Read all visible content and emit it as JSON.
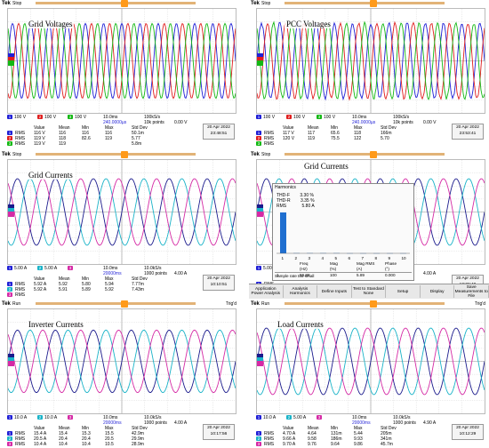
{
  "colors": {
    "ch1": "#1f1fd6",
    "ch2": "#e01e1e",
    "ch3": "#13b813",
    "ch4": "#e020c0",
    "cyan": "#19b3c8",
    "navy": "#1a1a8c",
    "magenta": "#d52aa5",
    "orange": "#ff9a1a"
  },
  "scopes": [
    {
      "title": "Grid Voltages",
      "brand": "Tek",
      "mode": "Stop",
      "trig": "",
      "ch_row": [
        "100 V",
        "100 V",
        "100 V"
      ],
      "timebase": "10.0ms",
      "sample": "100kS/s",
      "points": "10k points",
      "trig_level": "0.00 V",
      "delay": "240.0000µs",
      "head": [
        "Value",
        "Mean",
        "Min",
        "Max",
        "Std Dev"
      ],
      "meas": [
        [
          "RMS",
          "116 V",
          "116",
          "116",
          "116",
          "50.1m"
        ],
        [
          "RMS",
          "119 V",
          "118",
          "82.6",
          "119",
          "5.77"
        ],
        [
          "RMS",
          "119 V",
          "119",
          "",
          "",
          "5.8m"
        ]
      ],
      "date": "20 Apr 2022",
      "time": "23:48:51"
    },
    {
      "title": "PCC Voltages",
      "brand": "Tek",
      "mode": "Stop",
      "trig": "",
      "ch_row": [
        "100 V",
        "100 V",
        "100 V"
      ],
      "timebase": "10.0ms",
      "sample": "100kS/s",
      "points": "10k points",
      "trig_level": "0.00 V",
      "delay": "240.0000µs",
      "head": [
        "Value",
        "Mean",
        "Min",
        "Max",
        "Std Dev"
      ],
      "meas": [
        [
          "RMS",
          "117 V",
          "117",
          "65.6",
          "118",
          "166m"
        ],
        [
          "RMS",
          "120 V",
          "119",
          "75.5",
          "122",
          "5.70"
        ],
        [
          "RMS",
          "",
          "",
          "",
          "",
          ""
        ]
      ],
      "date": "20 Apr 2022",
      "time": "23:53:41"
    },
    {
      "title": "Grid Currents",
      "brand": "Tek",
      "mode": "Stop",
      "trig": "",
      "ch_row": [
        "5.00 A",
        "5.00 A",
        ""
      ],
      "timebase": "10.0ms",
      "sample": "10.0kS/s",
      "points": "1000 points",
      "trig_level": "4.00 A",
      "delay": "20000ms",
      "head": [
        "Value",
        "Mean",
        "Min",
        "Max",
        "Std Dev"
      ],
      "meas": [
        [
          "RMS",
          "5.92 A",
          "5.92",
          "5.80",
          "5.94",
          "7.77m"
        ],
        [
          "RMS",
          "5.92 A",
          "5.91",
          "5.89",
          "5.92",
          "7.43m"
        ],
        [
          "RMS",
          "",
          "",
          "",
          "",
          ""
        ]
      ],
      "date": "20 Apr 2022",
      "time": "10:10:51"
    },
    {
      "title": "Grid Currents",
      "brand": "Tek",
      "mode": "Stop",
      "trig": "",
      "ch_row": [
        "5.00 A",
        "5.00 A",
        ""
      ],
      "timebase": "",
      "sample": "",
      "points": "",
      "trig_level": "4.00 A",
      "delay": "",
      "head": [
        "",
        "",
        "",
        "",
        "Std Dev"
      ],
      "meas": [
        [
          "RMS",
          "",
          "",
          "",
          "",
          ""
        ],
        [
          "RMS",
          "",
          "",
          "",
          "",
          ""
        ],
        [
          "RMS",
          "",
          "",
          "",
          "",
          ""
        ]
      ],
      "date": "20 Apr 2022",
      "time": "10:09:40"
    },
    {
      "title": "Inverter Currents",
      "brand": "Tek",
      "mode": "Run",
      "trig": "Trig'd",
      "ch_row": [
        "10.0 A",
        "10.0 A",
        ""
      ],
      "timebase": "10.0ms",
      "sample": "10.0kS/s",
      "points": "1000 points",
      "trig_level": "4.00 A",
      "delay": "20000ms",
      "head": [
        "Value",
        "Mean",
        "Min",
        "Max",
        "Std Dev"
      ],
      "meas": [
        [
          "RMS",
          "15.4 A",
          "15.4",
          "15.3",
          "15.5",
          "42.9m"
        ],
        [
          "RMS",
          "20.5 A",
          "20.4",
          "20.4",
          "20.5",
          "29.9m"
        ],
        [
          "RMS",
          "10.4 A",
          "10.4",
          "10.4",
          "10.5",
          "28.9m"
        ]
      ],
      "date": "20 Apr 2022",
      "time": "10:17:56"
    },
    {
      "title": "Load Currents",
      "brand": "Tek",
      "mode": "Run",
      "trig": "Trig'd",
      "ch_row": [
        "10.0 A",
        "5.00 A",
        ""
      ],
      "timebase": "10.0ms",
      "sample": "10.0kS/s",
      "points": "1000 points",
      "trig_level": "4.90 A",
      "delay": "20000ms",
      "head": [
        "Value",
        "Mean",
        "Min",
        "Max",
        "Std Dev"
      ],
      "meas": [
        [
          "RMS",
          "4.70 A",
          "4.64",
          "131m",
          "5.44",
          "205m"
        ],
        [
          "RMS",
          "9.66 A",
          "9.58",
          "186m",
          "9.93",
          "341m"
        ],
        [
          "RMS",
          "9.70 A",
          "9.76",
          "9.64",
          "9.86",
          "45.7m"
        ]
      ],
      "date": "20 Apr 2022",
      "time": "10:12:29"
    }
  ],
  "harmonics": {
    "header": "Harmonics",
    "thdf_label": "THD-F",
    "thdf": "3.30 %",
    "thdr_label": "THD-R",
    "thdr": "3.35 %",
    "rms_label": "RMS",
    "rms": "5.80 A",
    "bins": [
      "1",
      "2",
      "3",
      "4",
      "5",
      "6",
      "7",
      "8",
      "9",
      "10"
    ],
    "col_heads": [
      "Freq",
      "Mag",
      "Mag RMS",
      "Phase"
    ],
    "col_units": [
      "(Hz)",
      "(%)",
      "(A)",
      "(°)"
    ],
    "row": [
      "1",
      "59.88",
      "100",
      "5.89",
      "0.000"
    ],
    "note": "Sample rate too small"
  },
  "menu": [
    "Application Power Analysis",
    "Analysis Harmonics",
    "Define Inputs",
    "Test to Standard None",
    "Setup",
    "Display",
    "Save Measurements to File"
  ]
}
